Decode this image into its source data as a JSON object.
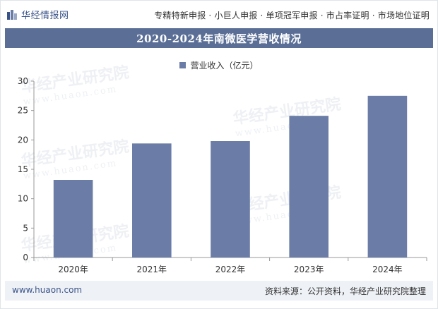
{
  "header": {
    "logo_text": "华经情报网",
    "services": "专精特新申报 · 小巨人申报 · 单项冠军申报 · 市占率证明 · 市场地位证明"
  },
  "watermark": {
    "cn": "华经产业研究院",
    "url": "www.huaon.com"
  },
  "colors": {
    "title_bg": "#5a6e96",
    "bar": "#6b7da6",
    "accent": "#3b5488"
  },
  "chart_data": {
    "type": "bar",
    "title": "2020-2024年南微医学营收情况",
    "categories": [
      "2020年",
      "2021年",
      "2022年",
      "2023年",
      "2024年"
    ],
    "series": [
      {
        "name": "营业收入（亿元）",
        "values": [
          13.2,
          19.4,
          19.8,
          24.1,
          27.5
        ]
      }
    ],
    "xlabel": "",
    "ylabel": "",
    "ylim": [
      0,
      30
    ],
    "yticks": [
      0,
      5,
      10,
      15,
      20,
      25,
      30
    ],
    "legend_position": "top-center",
    "grid": false
  },
  "footer": {
    "url": "www.huaon.com",
    "source": "资料来源：公开资料，华经产业研究院整理"
  }
}
